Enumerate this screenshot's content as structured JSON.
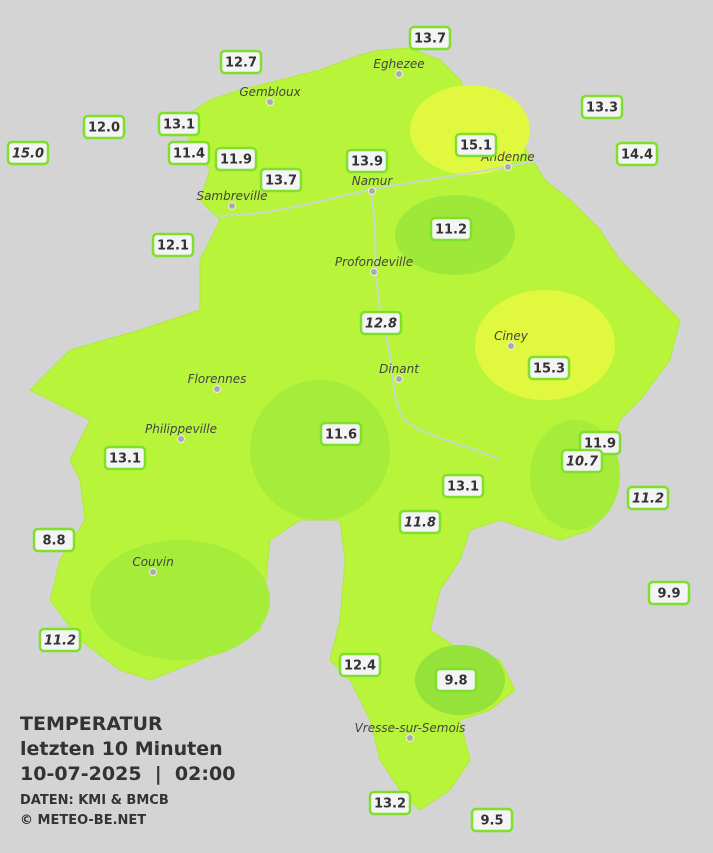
{
  "header": {
    "title": "TEMPERATUR",
    "subtitle": "letzten 10 Minuten",
    "datetime": "10-07-2025  |  02:00",
    "source": "DATEN: KMI & BMCB",
    "credit": "© METEO-BE.NET"
  },
  "cities": [
    {
      "name": "Eghezee"
    },
    {
      "name": "Gembloux"
    },
    {
      "name": "Andenne"
    },
    {
      "name": "Namur"
    },
    {
      "name": "Sambreville"
    },
    {
      "name": "Profondeville"
    },
    {
      "name": "Ciney"
    },
    {
      "name": "Dinant"
    },
    {
      "name": "Florennes"
    },
    {
      "name": "Philippeville"
    },
    {
      "name": "Couvin"
    },
    {
      "name": "Vresse-sur-Semois"
    }
  ],
  "stations": [
    {
      "label": "13.7"
    },
    {
      "label": "12.7"
    },
    {
      "label": "12.0"
    },
    {
      "label": "13.1"
    },
    {
      "label": "13.3"
    },
    {
      "label": "15.0",
      "italic": true
    },
    {
      "label": "11.4"
    },
    {
      "label": "11.9"
    },
    {
      "label": "13.9"
    },
    {
      "label": "15.1"
    },
    {
      "label": "14.4"
    },
    {
      "label": "13.7"
    },
    {
      "label": "11.2"
    },
    {
      "label": "12.1"
    },
    {
      "label": "12.8",
      "italic": true
    },
    {
      "label": "15.3"
    },
    {
      "label": "11.6"
    },
    {
      "label": "11.9"
    },
    {
      "label": "10.7",
      "italic": true
    },
    {
      "label": "13.1"
    },
    {
      "label": "13.1"
    },
    {
      "label": "11.2",
      "italic": true
    },
    {
      "label": "11.8",
      "italic": true
    },
    {
      "label": "8.8"
    },
    {
      "label": "9.9"
    },
    {
      "label": "11.2",
      "italic": true
    },
    {
      "label": "12.4"
    },
    {
      "label": "9.8"
    },
    {
      "label": "13.2"
    },
    {
      "label": "9.5"
    }
  ]
}
